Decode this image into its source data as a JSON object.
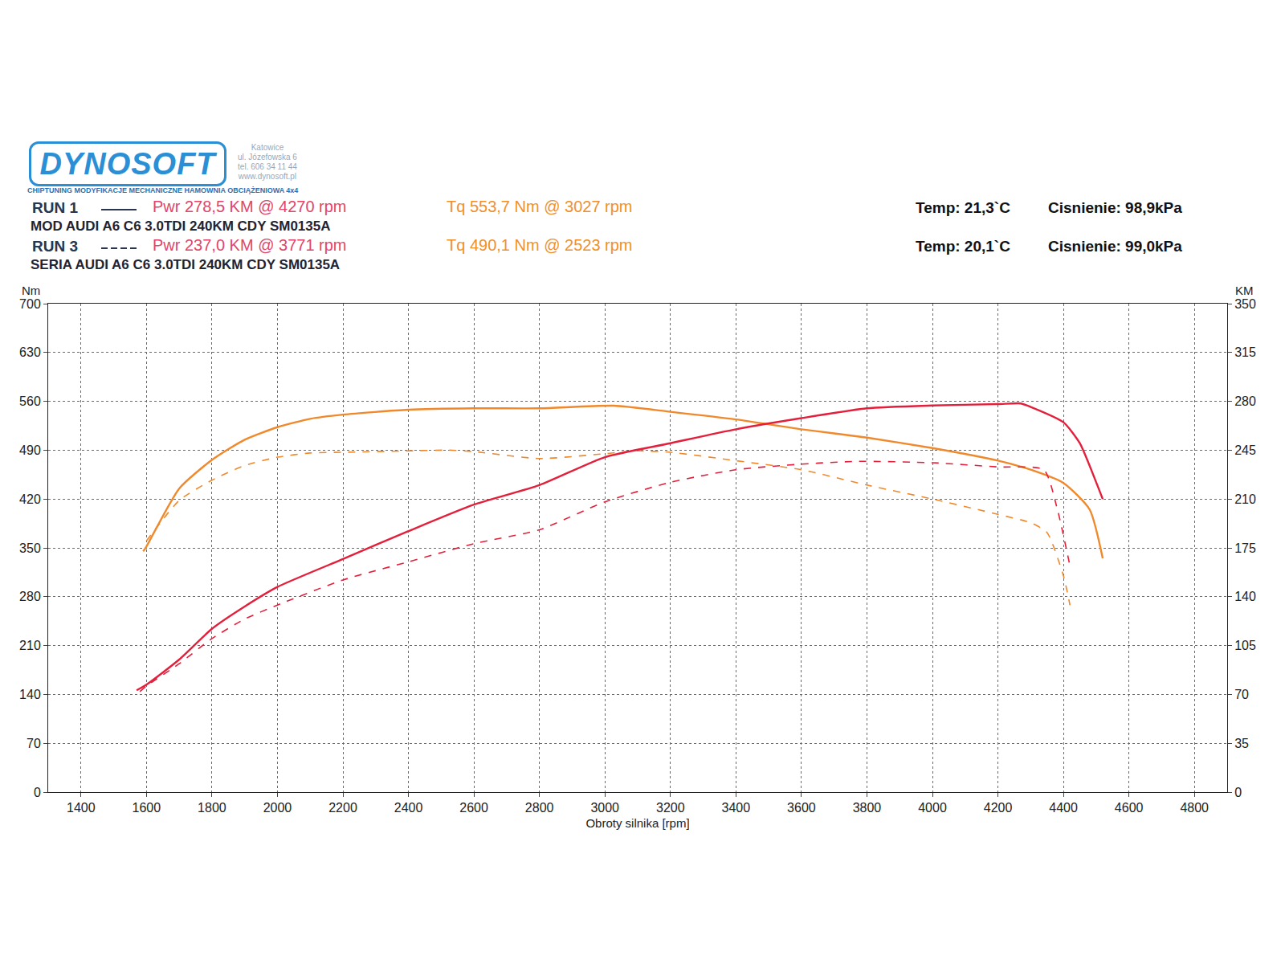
{
  "chart_data": {
    "type": "line",
    "header": {
      "logo": "DYNOSOFT",
      "tagline": "CHIPTUNING   MODYFIKACJE MECHANICZNE   HAMOWNIA OBCIĄŻENIOWA 4x4",
      "address": [
        "Katowice",
        "ul. Józefowska 6",
        "tel. 606 34 11 44",
        "www.dynosoft.pl"
      ]
    },
    "runs": [
      {
        "name": "RUN 1",
        "power_label": "Pwr  278,5 KM @ 4270 rpm",
        "torque_label": "Tq 553,7 Nm @ 3027 rpm",
        "description": "MOD AUDI A6 C6 3.0TDI 240KM CDY SM0135A",
        "temp": "Temp: 21,3`C",
        "pressure": "Cisnienie: 98,9kPa",
        "line_style": "solid"
      },
      {
        "name": "RUN 3",
        "power_label": "Pwr  237,0 KM @ 3771 rpm",
        "torque_label": "Tq 490,1 Nm @ 2523 rpm",
        "description": "SERIA AUDI A6 C6 3.0TDI 240KM CDY SM0135A",
        "temp": "Temp: 20,1`C",
        "pressure": "Cisnienie: 99,0kPa",
        "line_style": "dash"
      }
    ],
    "x_label": "Obroty silnika [rpm]",
    "y_label": "Nm",
    "y2_label": "KM",
    "xlim": [
      1300,
      4900
    ],
    "xticks": [
      1400,
      1600,
      1800,
      2000,
      2200,
      2400,
      2600,
      2800,
      3000,
      3200,
      3400,
      3600,
      3800,
      4000,
      4200,
      4400,
      4600,
      4800
    ],
    "ylim": [
      0,
      700
    ],
    "yticks": [
      0,
      70,
      140,
      210,
      280,
      350,
      420,
      490,
      560,
      630,
      700
    ],
    "y2lim": [
      0,
      350
    ],
    "y2ticks": [
      0,
      35,
      70,
      105,
      140,
      175,
      210,
      245,
      280,
      315,
      350
    ],
    "grid": true,
    "legend": false,
    "series": [
      {
        "name": "RUN 1",
        "quantity": "Tq",
        "color": "#f0892c",
        "line_style": "solid",
        "x": [
          1590,
          1600,
          1700,
          1800,
          1900,
          2000,
          2100,
          2200,
          2400,
          2600,
          2800,
          3027,
          3200,
          3400,
          3600,
          3800,
          4000,
          4200,
          4300,
          4400,
          4480,
          4520
        ],
        "values": [
          345,
          352,
          435,
          476,
          505,
          523,
          535,
          541,
          548,
          550,
          550,
          553.7,
          545,
          534,
          520,
          508,
          493,
          475,
          462,
          443,
          405,
          335
        ]
      },
      {
        "name": "RUN 1",
        "quantity": "Pwr",
        "axis": "y2",
        "color": "#e3203c",
        "line_style": "solid",
        "x": [
          1570,
          1600,
          1700,
          1800,
          1900,
          2000,
          2200,
          2400,
          2600,
          2800,
          3000,
          3200,
          3400,
          3600,
          3800,
          4000,
          4200,
          4270,
          4300,
          4400,
          4450,
          4500,
          4520
        ],
        "values": [
          73,
          77,
          95,
          117,
          133,
          147,
          167,
          187,
          206,
          220,
          240,
          250,
          260,
          268,
          275,
          277,
          278,
          278.5,
          276,
          265,
          250,
          222,
          210
        ]
      },
      {
        "name": "RUN 3",
        "quantity": "Tq",
        "color": "#f0892c",
        "line_style": "dash",
        "x": [
          1600,
          1700,
          1800,
          1900,
          2000,
          2100,
          2200,
          2400,
          2523,
          2600,
          2800,
          3000,
          3100,
          3200,
          3400,
          3600,
          3800,
          4000,
          4200,
          4300,
          4350,
          4400,
          4420
        ],
        "values": [
          360,
          418,
          447,
          468,
          480,
          486,
          487,
          489,
          490.1,
          488,
          478,
          485,
          489,
          487,
          475,
          462,
          440,
          420,
          398,
          386,
          372,
          310,
          268
        ]
      },
      {
        "name": "RUN 3",
        "quantity": "Pwr",
        "axis": "y2",
        "color": "#e3203c",
        "line_style": "dash",
        "x": [
          1580,
          1600,
          1700,
          1800,
          1900,
          2000,
          2200,
          2400,
          2600,
          2800,
          3000,
          3200,
          3400,
          3600,
          3771,
          4000,
          4200,
          4340,
          4380,
          4420
        ],
        "values": [
          72,
          76,
          92,
          110,
          124,
          134,
          152,
          165,
          178,
          188,
          208,
          222,
          231,
          235,
          237,
          236,
          233,
          231,
          204,
          162
        ]
      }
    ]
  }
}
